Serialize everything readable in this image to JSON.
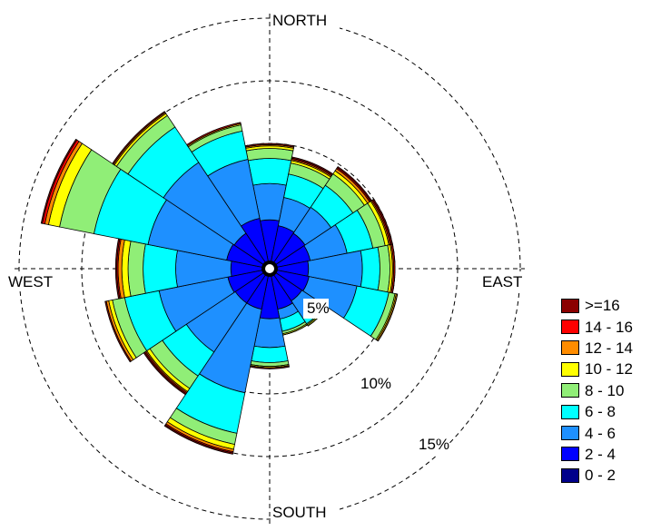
{
  "chart_data": {
    "type": "wind_rose",
    "directions": [
      "N",
      "NNE",
      "NE",
      "ENE",
      "E",
      "ESE",
      "SE",
      "SSE",
      "S",
      "SSW",
      "SW",
      "WSW",
      "W",
      "WNW",
      "NW",
      "NNW"
    ],
    "axis_labels": {
      "north": "NORTH",
      "east": "EAST",
      "south": "SOUTH",
      "west": "WEST"
    },
    "rings": [
      {
        "value": 5,
        "label": "5%"
      },
      {
        "value": 10,
        "label": "10%"
      },
      {
        "value": 15,
        "label": "15%"
      },
      {
        "value": 20,
        "label": ""
      }
    ],
    "units": "percent frequency",
    "bins": [
      {
        "label": "0 - 2",
        "color": "#00008B"
      },
      {
        "label": "2 - 4",
        "color": "#0000FF"
      },
      {
        "label": "4 - 6",
        "color": "#1E90FF"
      },
      {
        "label": "6 - 8",
        "color": "#00FFFF"
      },
      {
        "label": "8 - 10",
        "color": "#90EE77"
      },
      {
        "label": "10 - 12",
        "color": "#FFFF00"
      },
      {
        "label": "12 - 14",
        "color": "#FF8C00"
      },
      {
        "label": "14 - 16",
        "color": "#FF0000"
      },
      {
        "label": ">=16",
        "color": "#8B0000"
      }
    ],
    "cumulative": [
      [
        0.4,
        3.9,
        6.8,
        8.8,
        9.6,
        9.8,
        9.9,
        9.9,
        10.0
      ],
      [
        0.4,
        3.5,
        5.8,
        7.7,
        8.6,
        8.8,
        8.9,
        9.0,
        9.1
      ],
      [
        0.4,
        3.4,
        5.9,
        8.0,
        9.1,
        9.4,
        9.6,
        9.7,
        9.8
      ],
      [
        0.4,
        3.3,
        6.3,
        8.4,
        9.4,
        9.7,
        9.8,
        9.9,
        10.0
      ],
      [
        0.4,
        3.1,
        7.4,
        8.8,
        9.6,
        9.8,
        9.9,
        10.0,
        10.0
      ],
      [
        0.4,
        3.2,
        7.1,
        9.7,
        10.2,
        10.3,
        10.4,
        10.4,
        10.4
      ],
      [
        0.4,
        3.1,
        4.8,
        5.3,
        5.4,
        5.5,
        5.5,
        5.5,
        5.5
      ],
      [
        0.4,
        3.3,
        4.1,
        5.1,
        5.3,
        5.4,
        5.4,
        5.4,
        5.4
      ],
      [
        0.4,
        4.0,
        6.3,
        7.5,
        7.8,
        7.9,
        7.9,
        7.9,
        8.0
      ],
      [
        0.4,
        3.3,
        10.1,
        13.4,
        14.3,
        14.7,
        14.9,
        15.0,
        15.1
      ],
      [
        0.4,
        3.3,
        8.0,
        10.3,
        11.5,
        11.8,
        11.9,
        12.0,
        12.1
      ],
      [
        0.4,
        3.4,
        9.0,
        11.8,
        12.8,
        13.1,
        13.3,
        13.3,
        13.4
      ],
      [
        0.4,
        3.1,
        7.5,
        10.1,
        11.3,
        11.8,
        12.1,
        12.2,
        12.3
      ],
      [
        0.4,
        3.5,
        9.9,
        14.3,
        17.1,
        18.0,
        18.3,
        18.5,
        18.6
      ],
      [
        0.4,
        3.4,
        10.2,
        13.6,
        14.7,
        14.9,
        15.0,
        15.0,
        15.1
      ],
      [
        0.4,
        4.1,
        8.9,
        11.2,
        11.7,
        11.8,
        11.8,
        11.9,
        11.9
      ]
    ]
  }
}
